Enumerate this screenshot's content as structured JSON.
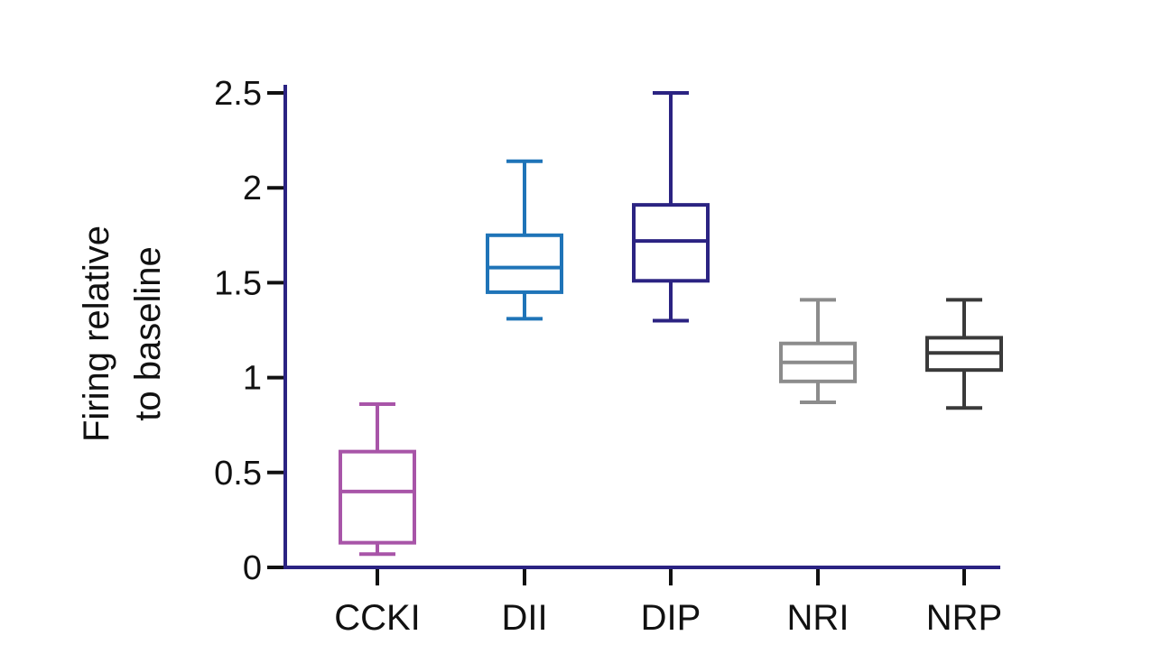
{
  "chart_data": {
    "type": "box",
    "ylabel_line1": "Firing relative",
    "ylabel_line2": "to baseline",
    "ylim": [
      0,
      2.5
    ],
    "yticks": [
      0,
      0.5,
      1,
      1.5,
      2,
      2.5
    ],
    "ytick_labels": [
      "0",
      "0.5",
      "1",
      "1.5",
      "2",
      "2.5"
    ],
    "categories": [
      "CCKI",
      "DII",
      "DIP",
      "NRI",
      "NRP"
    ],
    "boxes": [
      {
        "category": "CCKI",
        "min": 0.07,
        "q1": 0.13,
        "median": 0.4,
        "q3": 0.61,
        "max": 0.86,
        "color": "#a855a8"
      },
      {
        "category": "DII",
        "min": 1.31,
        "q1": 1.45,
        "median": 1.58,
        "q3": 1.75,
        "max": 2.14,
        "color": "#1f74b8"
      },
      {
        "category": "DIP",
        "min": 1.3,
        "q1": 1.51,
        "median": 1.72,
        "q3": 1.91,
        "max": 2.5,
        "color": "#2b2382"
      },
      {
        "category": "NRI",
        "min": 0.87,
        "q1": 0.98,
        "median": 1.08,
        "q3": 1.18,
        "max": 1.41,
        "color": "#8c8c8c"
      },
      {
        "category": "NRP",
        "min": 0.84,
        "q1": 1.04,
        "median": 1.13,
        "q3": 1.21,
        "max": 1.41,
        "color": "#3a3a3a"
      }
    ],
    "axis_color": "#2b2382",
    "tick_color": "#111111",
    "grid": false,
    "legend": "none"
  }
}
